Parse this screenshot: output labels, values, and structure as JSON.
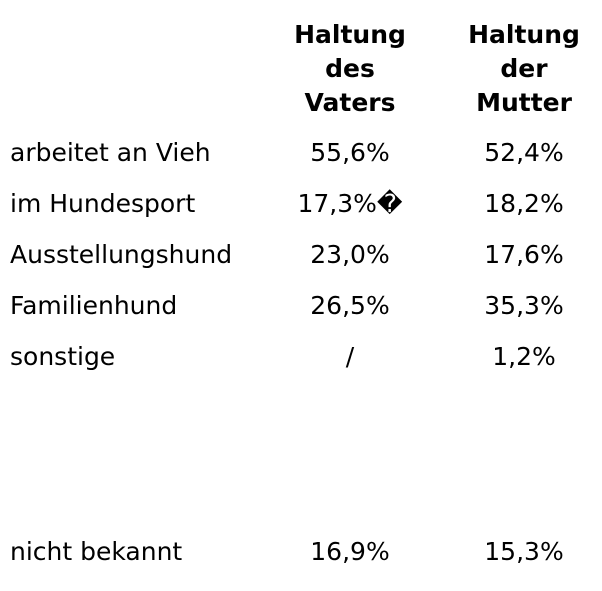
{
  "table": {
    "header": [
      "",
      "Haltung des Vaters",
      "Haltung der Mutter"
    ],
    "rows": [
      [
        "arbeitet an Vieh",
        "55,6%",
        "52,4%"
      ],
      [
        "im Hundesport",
        "17,3%�",
        "18,2%"
      ],
      [
        "Ausstellungshund",
        "23,0%",
        "17,6%"
      ],
      [
        "Familienhund",
        "26,5%",
        "35,3%"
      ],
      [
        "sonstige",
        "/",
        "1,2%"
      ],
      [
        "nicht bekannt",
        "16,9%",
        "15,3%"
      ]
    ]
  }
}
